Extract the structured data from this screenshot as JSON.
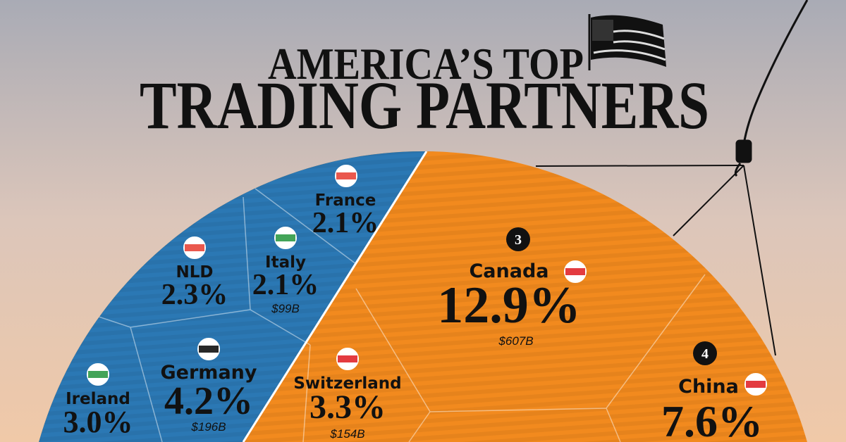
{
  "header": {
    "title_line1": "AMERICA’S TOP",
    "title_line2": "TRADING PARTNERS"
  },
  "cells": [
    {
      "name": "France",
      "share": "2.1%"
    },
    {
      "name": "NLD",
      "share": "2.3%"
    },
    {
      "name": "Italy",
      "share": "2.1%",
      "value": "$99B"
    },
    {
      "name": "Germany",
      "share": "4.2%",
      "value": "$196B"
    },
    {
      "name": "Ireland",
      "share": "3.0%"
    },
    {
      "name": "Switzerland",
      "share": "3.3%",
      "value": "$154B"
    },
    {
      "rank": "3",
      "name": "Canada",
      "share": "12.9%",
      "value": "$607B"
    },
    {
      "rank": "4",
      "name": "China",
      "share": "7.6%"
    }
  ]
}
